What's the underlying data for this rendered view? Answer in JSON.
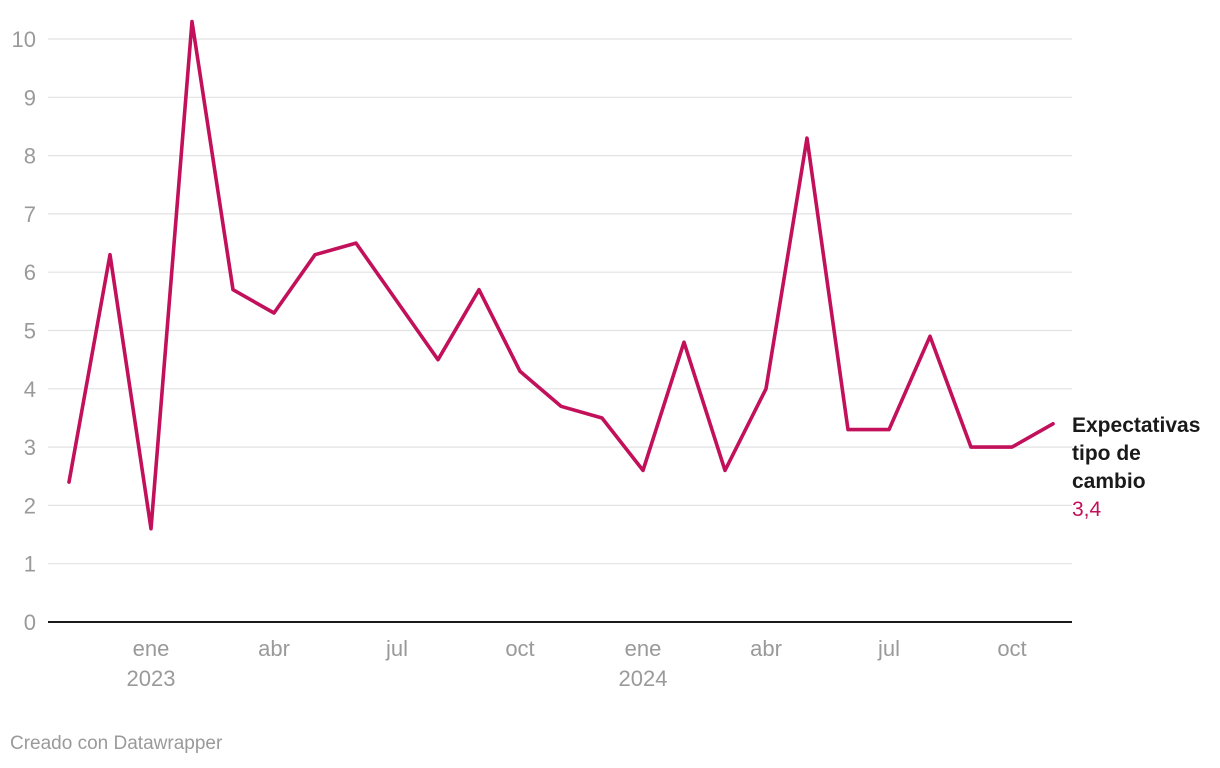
{
  "chart_data": {
    "type": "line",
    "series": [
      {
        "name": "Expectativas tipo de cambio",
        "end_label": "3,4",
        "color": "#c2105a",
        "points": [
          {
            "x": "2022-11",
            "y": 2.4
          },
          {
            "x": "2022-12",
            "y": 6.3
          },
          {
            "x": "2023-01",
            "y": 1.6
          },
          {
            "x": "2023-02",
            "y": 10.3
          },
          {
            "x": "2023-03",
            "y": 5.7
          },
          {
            "x": "2023-04",
            "y": 5.3
          },
          {
            "x": "2023-05",
            "y": 6.3
          },
          {
            "x": "2023-06",
            "y": 6.5
          },
          {
            "x": "2023-07",
            "y": 5.5
          },
          {
            "x": "2023-08",
            "y": 4.5
          },
          {
            "x": "2023-09",
            "y": 5.7
          },
          {
            "x": "2023-10",
            "y": 4.3
          },
          {
            "x": "2023-11",
            "y": 3.7
          },
          {
            "x": "2023-12",
            "y": 3.5
          },
          {
            "x": "2024-01",
            "y": 2.6
          },
          {
            "x": "2024-02",
            "y": 4.8
          },
          {
            "x": "2024-03",
            "y": 2.6
          },
          {
            "x": "2024-04",
            "y": 4.0
          },
          {
            "x": "2024-05",
            "y": 8.3
          },
          {
            "x": "2024-06",
            "y": 3.3
          },
          {
            "x": "2024-07",
            "y": 3.3
          },
          {
            "x": "2024-08",
            "y": 4.9
          },
          {
            "x": "2024-09",
            "y": 3.0
          },
          {
            "x": "2024-10",
            "y": 3.0
          },
          {
            "x": "2024-11",
            "y": 3.4
          }
        ]
      }
    ],
    "yticks": [
      0,
      1,
      2,
      3,
      4,
      5,
      6,
      7,
      8,
      9,
      10
    ],
    "ylim": [
      0,
      10.5
    ],
    "xticks": [
      {
        "x": "2023-01",
        "label": "ene",
        "year": "2023"
      },
      {
        "x": "2023-04",
        "label": "abr"
      },
      {
        "x": "2023-07",
        "label": "jul"
      },
      {
        "x": "2023-10",
        "label": "oct"
      },
      {
        "x": "2024-01",
        "label": "ene",
        "year": "2024"
      },
      {
        "x": "2024-04",
        "label": "abr"
      },
      {
        "x": "2024-07",
        "label": "jul"
      },
      {
        "x": "2024-10",
        "label": "oct"
      }
    ],
    "grid": true,
    "legend": "none"
  },
  "footer": {
    "credit": "Creado con Datawrapper"
  }
}
